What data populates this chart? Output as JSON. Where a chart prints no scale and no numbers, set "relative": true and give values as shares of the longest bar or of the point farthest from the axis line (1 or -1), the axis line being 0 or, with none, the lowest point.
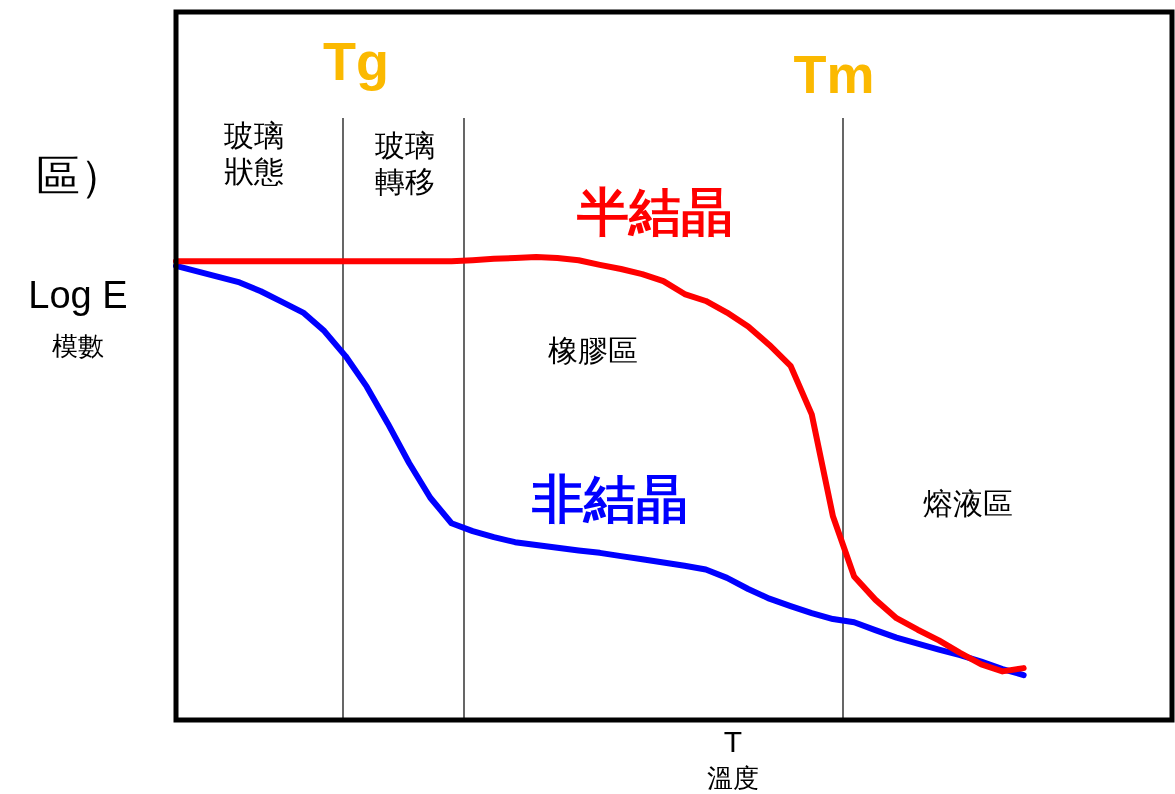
{
  "chart_data": {
    "type": "line",
    "relative": true,
    "xlabel": "T",
    "ylabel": "Log E",
    "legend": false,
    "marker": "none",
    "line_style": "solid",
    "categories": [
      null,
      null,
      null,
      null,
      null,
      null,
      null,
      null,
      null,
      null,
      null,
      null,
      null,
      null,
      null,
      null,
      null,
      null,
      null,
      null,
      null,
      null,
      null,
      null,
      null,
      null,
      null,
      null,
      null,
      null,
      null,
      null,
      null,
      null,
      null,
      null,
      null,
      null,
      null,
      null,
      null,
      null,
      null,
      null,
      null,
      null,
      null,
      null
    ],
    "series": [
      {
        "name": "半結晶",
        "color": "#ff0000",
        "values": [
          0.991,
          0.991,
          0.991,
          0.991,
          0.991,
          0.991,
          0.991,
          0.991,
          0.991,
          0.991,
          0.991,
          0.991,
          0.991,
          0.991,
          0.993,
          0.996,
          0.998,
          1,
          0.998,
          0.993,
          0.983,
          0.974,
          0.963,
          0.948,
          0.92,
          0.905,
          0.88,
          0.85,
          0.81,
          0.765,
          0.66,
          0.44,
          0.31,
          0.26,
          0.22,
          0.195,
          0.172,
          0.145,
          0.12,
          0.105,
          0.112,
          null,
          null,
          null,
          null,
          null,
          null,
          null
        ]
      },
      {
        "name": "非結晶",
        "color": "#0000ff",
        "values": [
          0.981,
          0.969,
          0.957,
          0.945,
          0.926,
          0.903,
          0.88,
          0.84,
          0.786,
          0.72,
          0.64,
          0.555,
          0.48,
          0.425,
          0.408,
          0.395,
          0.384,
          0.378,
          0.372,
          0.366,
          0.361,
          0.354,
          0.347,
          0.34,
          0.333,
          0.325,
          0.307,
          0.283,
          0.262,
          0.246,
          0.231,
          0.218,
          0.211,
          0.194,
          0.178,
          0.165,
          0.152,
          0.14,
          0.126,
          0.11,
          0.097,
          null,
          null,
          null,
          null,
          null,
          null,
          null
        ]
      }
    ],
    "annotations": [
      "玻璃狀態",
      "玻璃轉移",
      "橡膠區",
      "熔液區",
      "區）",
      "模數",
      "溫度",
      "Tg",
      "Tm"
    ]
  }
}
